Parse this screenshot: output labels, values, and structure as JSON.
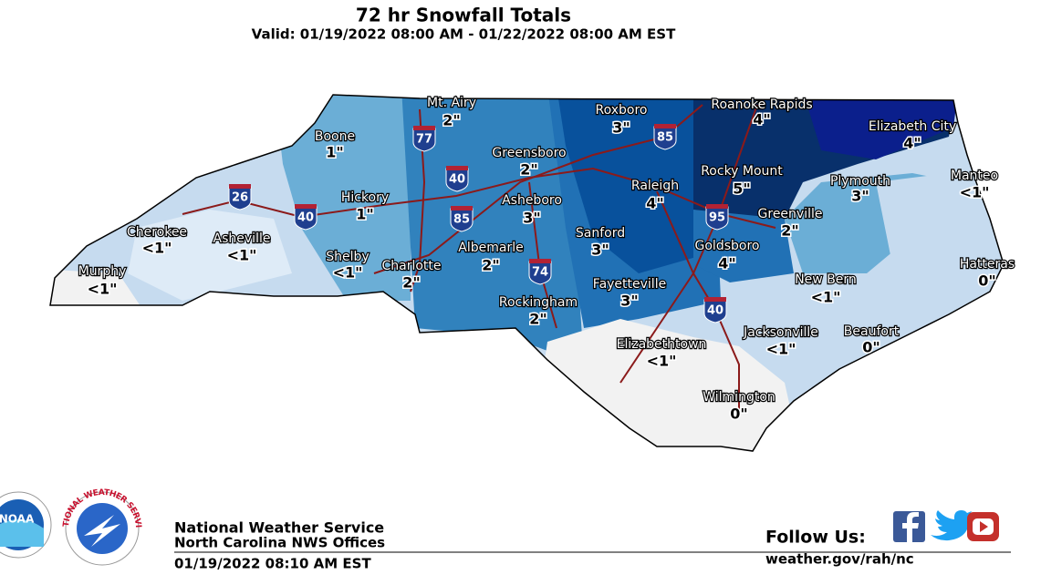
{
  "header": {
    "title": "72 hr Snowfall Totals",
    "subtitle": "Valid: 01/19/2022 08:00 AM - 01/22/2022 08:00 AM EST"
  },
  "cities": [
    {
      "name": "Mt. Airy",
      "amount": "2\""
    },
    {
      "name": "Roxboro",
      "amount": "3\""
    },
    {
      "name": "Roanoke Rapids",
      "amount": "4\""
    },
    {
      "name": "Elizabeth City",
      "amount": "4\""
    },
    {
      "name": "Boone",
      "amount": "1\""
    },
    {
      "name": "Greensboro",
      "amount": "2\""
    },
    {
      "name": "Manteo",
      "amount": "<1\""
    },
    {
      "name": "Rocky Mount",
      "amount": "5\""
    },
    {
      "name": "Plymouth",
      "amount": "3\""
    },
    {
      "name": "Raleigh",
      "amount": "4\""
    },
    {
      "name": "Asheboro",
      "amount": "3\""
    },
    {
      "name": "Hickory",
      "amount": "1\""
    },
    {
      "name": "Greenville",
      "amount": "2\""
    },
    {
      "name": "Cherokee",
      "amount": "<1\""
    },
    {
      "name": "Asheville",
      "amount": "<1\""
    },
    {
      "name": "Sanford",
      "amount": "3\""
    },
    {
      "name": "Goldsboro",
      "amount": "4\""
    },
    {
      "name": "Albemarle",
      "amount": "2\""
    },
    {
      "name": "Shelby",
      "amount": "<1\""
    },
    {
      "name": "Charlotte",
      "amount": "2\""
    },
    {
      "name": "Hatteras",
      "amount": "0\""
    },
    {
      "name": "Murphy",
      "amount": "<1\""
    },
    {
      "name": "New Bern",
      "amount": "<1\""
    },
    {
      "name": "Fayetteville",
      "amount": "3\""
    },
    {
      "name": "Rockingham",
      "amount": "2\""
    },
    {
      "name": "Jacksonville",
      "amount": "<1\""
    },
    {
      "name": "Beaufort",
      "amount": "0\""
    },
    {
      "name": "Elizabethtown",
      "amount": "<1\""
    },
    {
      "name": "Wilmington",
      "amount": "0\""
    }
  ],
  "interstates": [
    "77",
    "85",
    "40",
    "26",
    "40",
    "85",
    "95",
    "74",
    "40"
  ],
  "logos": {
    "noaa": "NOAA",
    "nws": "NATIONAL WEATHER SERVICE"
  },
  "footer": {
    "org": "National Weather Service",
    "offices": "North Carolina NWS Offices",
    "timestamp": "01/19/2022 08:10 AM EST",
    "follow": "Follow Us:",
    "url": "weather.gov/rah/nc"
  }
}
